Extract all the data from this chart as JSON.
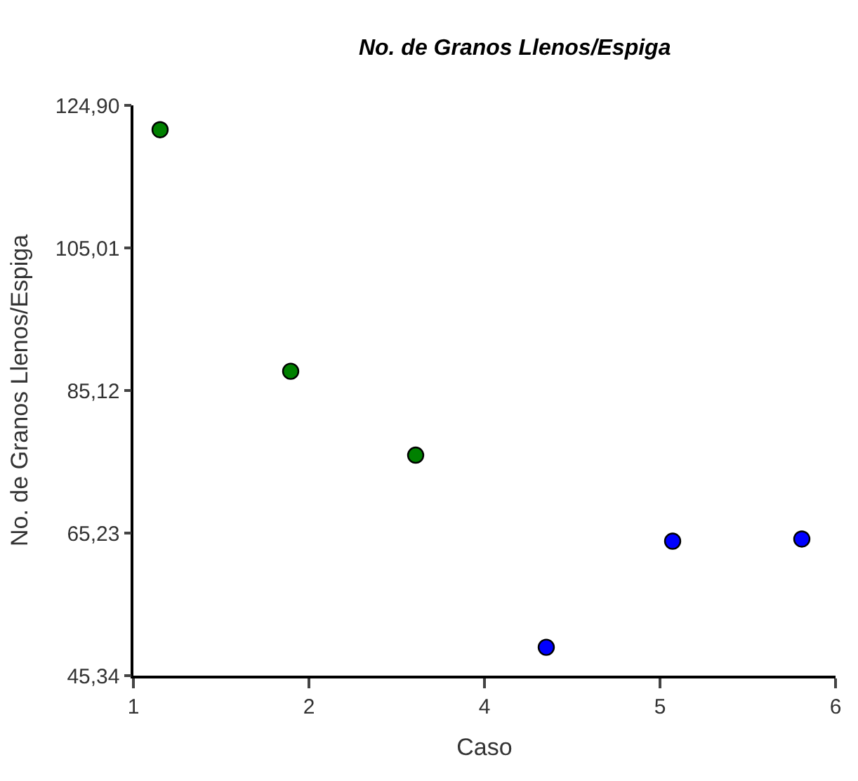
{
  "chart_data": {
    "type": "scatter",
    "title": "No. de Granos Llenos/Espiga",
    "xlabel": "Caso",
    "ylabel": "No. de Granos Llenos/Espiga",
    "series": [
      {
        "color": "#008000",
        "x": [
          1.19,
          2.12,
          3.01
        ],
        "values": [
          121.5,
          87.8,
          76.1
        ]
      },
      {
        "color": "#0000ff",
        "x": [
          3.94,
          4.84,
          5.76
        ],
        "values": [
          49.3,
          64.1,
          64.4
        ]
      }
    ],
    "xlim": [
      1,
      6
    ],
    "xticks": [
      1,
      {
        "value": 2.25,
        "label": "2"
      },
      {
        "value": 3.5,
        "label": "4"
      },
      {
        "value": 4.75,
        "label": "5"
      },
      6
    ],
    "ylim": [
      45.34,
      124.9
    ],
    "yticks": [
      {
        "value": 45.34,
        "label": "45,34"
      },
      {
        "value": 65.23,
        "label": "65,23"
      },
      {
        "value": 85.12,
        "label": "85,12"
      },
      {
        "value": 105.01,
        "label": "105,01"
      },
      {
        "value": 124.9,
        "label": "124,90"
      }
    ],
    "marker": "circle"
  }
}
